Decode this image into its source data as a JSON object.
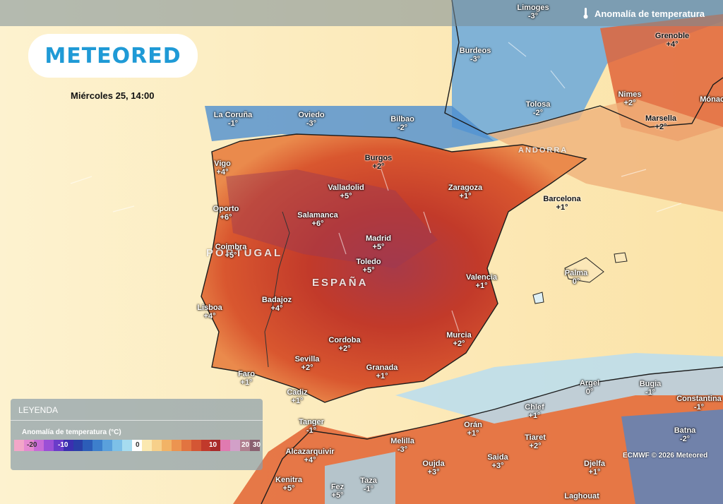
{
  "header": {
    "title": "Anomalía de temperatura",
    "logo": "METEORED"
  },
  "date": "Miércoles 25, 14:00",
  "countries": {
    "portugal": "PORTUGAL",
    "espana": "ESPAÑA",
    "andorra": "ANDORRA"
  },
  "cities": [
    {
      "name": "Limoges",
      "value": "-3°",
      "tone": "light"
    },
    {
      "name": "Burdeos",
      "value": "-3°",
      "tone": "light"
    },
    {
      "name": "Grenoble",
      "value": "+4°",
      "tone": "dark"
    },
    {
      "name": "Nimes",
      "value": "+2°",
      "tone": "light"
    },
    {
      "name": "Marsella",
      "value": "+2°",
      "tone": "dark"
    },
    {
      "name": "Mónaco",
      "value": "",
      "tone": "light"
    },
    {
      "name": "Tolosa",
      "value": "-2°",
      "tone": "light"
    },
    {
      "name": "La Coruña",
      "value": "-1°",
      "tone": "light"
    },
    {
      "name": "Oviedo",
      "value": "-3°",
      "tone": "light"
    },
    {
      "name": "Bilbao",
      "value": "-2°",
      "tone": "light"
    },
    {
      "name": "Burgos",
      "value": "+2°",
      "tone": "dark"
    },
    {
      "name": "Vigo",
      "value": "+4°",
      "tone": "light"
    },
    {
      "name": "Valladolid",
      "value": "+5°",
      "tone": "light"
    },
    {
      "name": "Zaragoza",
      "value": "+1°",
      "tone": "light"
    },
    {
      "name": "Barcelona",
      "value": "+1°",
      "tone": "dark"
    },
    {
      "name": "Oporto",
      "value": "+6°",
      "tone": "light"
    },
    {
      "name": "Salamanca",
      "value": "+6°",
      "tone": "light"
    },
    {
      "name": "Madrid",
      "value": "+5°",
      "tone": "light"
    },
    {
      "name": "Coimbra",
      "value": "+5°",
      "tone": "light"
    },
    {
      "name": "Toledo",
      "value": "+5°",
      "tone": "light"
    },
    {
      "name": "Valencia",
      "value": "+1°",
      "tone": "light"
    },
    {
      "name": "Palma",
      "value": "0°",
      "tone": "light"
    },
    {
      "name": "Badajoz",
      "value": "+4°",
      "tone": "light"
    },
    {
      "name": "Lisboa",
      "value": "+4°",
      "tone": "light"
    },
    {
      "name": "Cordoba",
      "value": "+2°",
      "tone": "light"
    },
    {
      "name": "Murcia",
      "value": "+2°",
      "tone": "light"
    },
    {
      "name": "Sevilla",
      "value": "+2°",
      "tone": "light"
    },
    {
      "name": "Granada",
      "value": "+1°",
      "tone": "light"
    },
    {
      "name": "Faro",
      "value": "+1°",
      "tone": "light"
    },
    {
      "name": "Cadiz",
      "value": "+1°",
      "tone": "light"
    },
    {
      "name": "Argel",
      "value": "0°",
      "tone": "light"
    },
    {
      "name": "Bugia",
      "value": "-1°",
      "tone": "light"
    },
    {
      "name": "Constantina",
      "value": "-1°",
      "tone": "light"
    },
    {
      "name": "Chlef",
      "value": "+1°",
      "tone": "light"
    },
    {
      "name": "Batna",
      "value": "-2°",
      "tone": "light"
    },
    {
      "name": "Tanger",
      "value": "-1°",
      "tone": "light"
    },
    {
      "name": "Orán",
      "value": "+1°",
      "tone": "light"
    },
    {
      "name": "Tiaret",
      "value": "+2°",
      "tone": "light"
    },
    {
      "name": "Melilla",
      "value": "-3°",
      "tone": "light"
    },
    {
      "name": "Alcazarquivir",
      "value": "+4°",
      "tone": "light"
    },
    {
      "name": "Oujda",
      "value": "+3°",
      "tone": "light"
    },
    {
      "name": "Saida",
      "value": "+3°",
      "tone": "light"
    },
    {
      "name": "Djelfa",
      "value": "+1°",
      "tone": "light"
    },
    {
      "name": "Kenitra",
      "value": "+5°",
      "tone": "light"
    },
    {
      "name": "Fez",
      "value": "+5°",
      "tone": "light"
    },
    {
      "name": "Taza",
      "value": "-1°",
      "tone": "light"
    },
    {
      "name": "Laghouat",
      "value": "",
      "tone": "light"
    }
  ],
  "legend": {
    "title": "LEYENDA",
    "subtitle": "Anomalía de temperatura (°C)",
    "ticks": [
      "-20",
      "-10",
      "0",
      "10",
      "20",
      "30"
    ],
    "colors": [
      "#f3a6c8",
      "#e58ad0",
      "#c86ad6",
      "#9b4fd6",
      "#6a3cc9",
      "#3b2fb0",
      "#2a3fa8",
      "#2c5db8",
      "#3d7fcc",
      "#5aa0dc",
      "#7dc0e8",
      "#a6dcf0",
      "#ffffff",
      "#fbe8b0",
      "#f7d08a",
      "#f2b366",
      "#ec9450",
      "#e27440",
      "#d45634",
      "#c1392b",
      "#a82a2a",
      "#e07ab0",
      "#d2a0c8",
      "#b08090",
      "#8a6070"
    ]
  },
  "copyright": "ECMWF © 2026 Meteored"
}
